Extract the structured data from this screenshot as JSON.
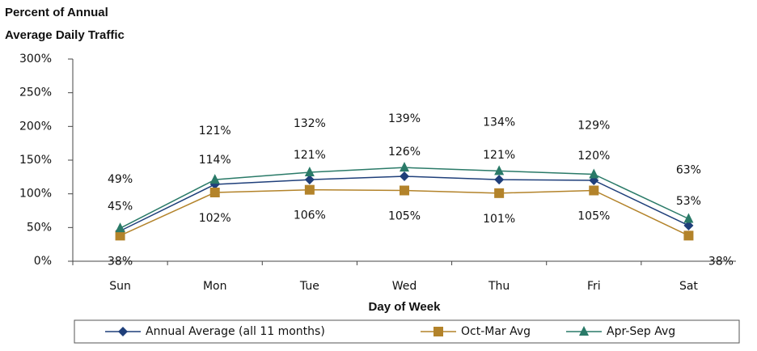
{
  "chart_data": {
    "type": "line",
    "title": [
      "Percent of Annual",
      "Average Daily  Traffic"
    ],
    "x_label": "Day of Week",
    "categories": [
      "Sun",
      "Mon",
      "Tue",
      "Wed",
      "Thu",
      "Fri",
      "Sat"
    ],
    "series": [
      {
        "name": "Annual Average (all 11 months)",
        "color": "#1f3f7a",
        "marker": "diamond",
        "values": [
          45,
          114,
          121,
          126,
          121,
          120,
          53
        ],
        "value_labels": [
          "45%",
          "114%",
          "121%",
          "126%",
          "121%",
          "120%",
          "53%"
        ]
      },
      {
        "name": "Oct-Mar Avg",
        "color": "#b3832a",
        "marker": "square",
        "values": [
          38,
          102,
          106,
          105,
          101,
          105,
          38
        ],
        "value_labels": [
          "38%",
          "102%",
          "106%",
          "105%",
          "101%",
          "105%",
          "38%"
        ]
      },
      {
        "name": "Apr-Sep Avg",
        "color": "#2a7a68",
        "marker": "triangle",
        "values": [
          49,
          121,
          132,
          139,
          134,
          129,
          63
        ],
        "value_labels": [
          "49%",
          "121%",
          "132%",
          "139%",
          "134%",
          "129%",
          "63%"
        ]
      }
    ],
    "ylim": [
      0,
      300
    ],
    "yticks": [
      {
        "value": 0,
        "label": "0%"
      },
      {
        "value": 50,
        "label": "50%"
      },
      {
        "value": 100,
        "label": "100%"
      },
      {
        "value": 150,
        "label": "150%"
      },
      {
        "value": 200,
        "label": "200%"
      },
      {
        "value": 250,
        "label": "250%"
      },
      {
        "value": 300,
        "label": "300%"
      }
    ],
    "grid": false,
    "legend": "bottom"
  }
}
